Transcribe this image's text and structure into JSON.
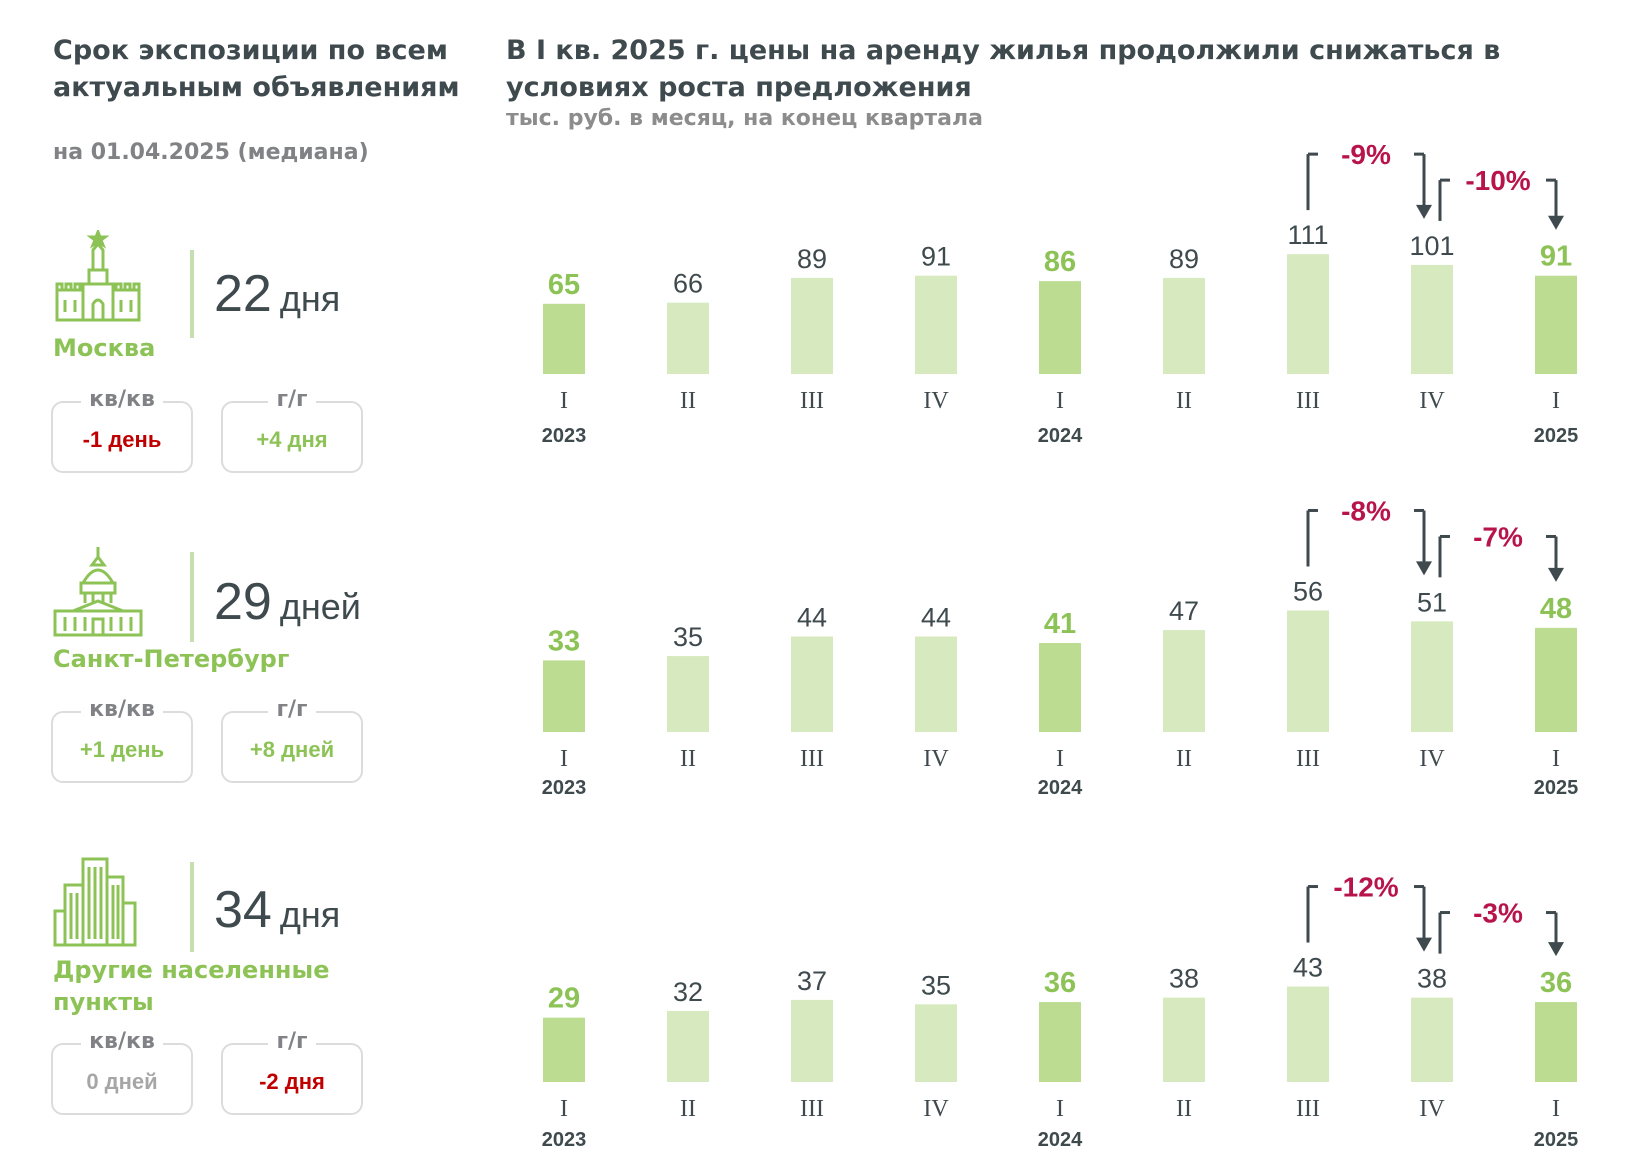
{
  "left_title": "Срок экспозиции по всем актуальным объявлениям",
  "left_subtitle": "на 01.04.2025 (медиана)",
  "main_title": "В I кв. 2025 г. цены на аренду жилья продолжили снижаться в условиях роста предложения",
  "main_subtitle": "тыс. руб. в месяц, на конец квартала",
  "box_labels": {
    "qq": "кв/кв",
    "yy": "г/г"
  },
  "icons": [
    "kremlin-icon",
    "cathedral-icon",
    "skyscraper-icon"
  ],
  "colors": {
    "accent_green": "#8dc356",
    "bar_dark": "#bcdc92",
    "bar_light": "#d7eabf",
    "negative_red": "#c00000",
    "change_crimson": "#b8144c",
    "neutral_gray": "#a6a6a6"
  },
  "cities": [
    {
      "name": "Москва",
      "days_num": "22",
      "days_unit": "дня",
      "qq": "-1 день",
      "qq_color": "#c00000",
      "yy": "+4 дня",
      "yy_color": "#8dc356"
    },
    {
      "name": "Санкт-Петербург",
      "days_num": "29",
      "days_unit": "дней",
      "qq": "+1 день",
      "qq_color": "#8dc356",
      "yy": "+8 дней",
      "yy_color": "#8dc356"
    },
    {
      "name": "Другие населенные пункты",
      "days_num": "34",
      "days_unit": "дня",
      "qq": "0 дней",
      "qq_color": "#a6a6a6",
      "yy": "-2 дня",
      "yy_color": "#c00000"
    }
  ],
  "chart_data": [
    {
      "type": "bar",
      "categories": [
        "I",
        "II",
        "III",
        "IV",
        "I",
        "II",
        "III",
        "IV",
        "I"
      ],
      "year_labels": [
        "2023",
        "",
        "",
        "",
        "2024",
        "",
        "",
        "",
        "2025"
      ],
      "values": [
        65,
        66,
        89,
        91,
        86,
        89,
        111,
        101,
        91
      ],
      "highlight": [
        true,
        false,
        false,
        false,
        true,
        false,
        false,
        false,
        true
      ],
      "changes": [
        {
          "label": "-9%",
          "from": 6,
          "to": 7
        },
        {
          "label": "-10%",
          "from": 7,
          "to": 8
        }
      ]
    },
    {
      "type": "bar",
      "categories": [
        "I",
        "II",
        "III",
        "IV",
        "I",
        "II",
        "III",
        "IV",
        "I"
      ],
      "year_labels": [
        "2023",
        "",
        "",
        "",
        "2024",
        "",
        "",
        "",
        "2025"
      ],
      "values": [
        33,
        35,
        44,
        44,
        41,
        47,
        56,
        51,
        48
      ],
      "highlight": [
        true,
        false,
        false,
        false,
        true,
        false,
        false,
        false,
        true
      ],
      "changes": [
        {
          "label": "-8%",
          "from": 6,
          "to": 7
        },
        {
          "label": "-7%",
          "from": 7,
          "to": 8
        }
      ]
    },
    {
      "type": "bar",
      "categories": [
        "I",
        "II",
        "III",
        "IV",
        "I",
        "II",
        "III",
        "IV",
        "I"
      ],
      "year_labels": [
        "2023",
        "",
        "",
        "",
        "2024",
        "",
        "",
        "",
        "2025"
      ],
      "values": [
        29,
        32,
        37,
        35,
        36,
        38,
        43,
        38,
        36
      ],
      "highlight": [
        true,
        false,
        false,
        false,
        true,
        false,
        false,
        false,
        true
      ],
      "changes": [
        {
          "label": "-12%",
          "from": 6,
          "to": 7
        },
        {
          "label": "-3%",
          "from": 7,
          "to": 8
        }
      ]
    }
  ]
}
